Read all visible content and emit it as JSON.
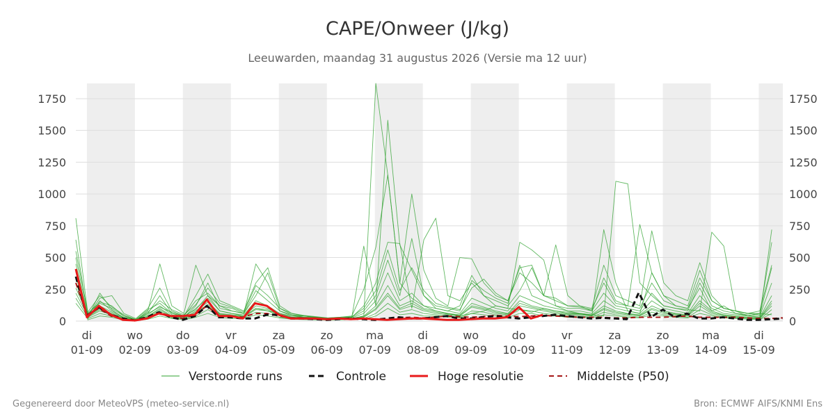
{
  "chart_data": {
    "type": "line",
    "title": "CAPE/Onweer (J/kg)",
    "subtitle": "Leeuwarden, maandag 31 augustus 2026 (Versie ma 12 uur)",
    "credit_left": "Gegenereerd door MeteoVPS (meteo-service.nl)",
    "credit_right": "Bron: ECMWF AIFS/KNMI Ens",
    "x_unit": "days since 2026-09-01 00:00",
    "xlim": [
      -0.23,
      14.5
    ],
    "ylim": [
      0,
      1870
    ],
    "y_ticks": [
      0,
      250,
      500,
      750,
      1000,
      1250,
      1500,
      1750
    ],
    "y_tick_labels": [
      "0",
      "250",
      "500",
      "750",
      "1000",
      "1250",
      "1500",
      "1750"
    ],
    "x_ticks": [
      {
        "x": 0,
        "day": "di",
        "date": "01-09"
      },
      {
        "x": 1,
        "day": "wo",
        "date": "02-09"
      },
      {
        "x": 2,
        "day": "do",
        "date": "03-09"
      },
      {
        "x": 3,
        "day": "vr",
        "date": "04-09"
      },
      {
        "x": 4,
        "day": "za",
        "date": "05-09"
      },
      {
        "x": 5,
        "day": "zo",
        "date": "06-09"
      },
      {
        "x": 6,
        "day": "ma",
        "date": "07-09"
      },
      {
        "x": 7,
        "day": "di",
        "date": "08-09"
      },
      {
        "x": 8,
        "day": "wo",
        "date": "09-09"
      },
      {
        "x": 9,
        "day": "do",
        "date": "10-09"
      },
      {
        "x": 10,
        "day": "vr",
        "date": "11-09"
      },
      {
        "x": 11,
        "day": "za",
        "date": "12-09"
      },
      {
        "x": 12,
        "day": "zo",
        "date": "13-09"
      },
      {
        "x": 13,
        "day": "ma",
        "date": "14-09"
      },
      {
        "x": 14,
        "day": "di",
        "date": "15-09"
      }
    ],
    "shaded_bands": [
      [
        0,
        1
      ],
      [
        2,
        3
      ],
      [
        4,
        5
      ],
      [
        6,
        7
      ],
      [
        8,
        9
      ],
      [
        10,
        11
      ],
      [
        12,
        13
      ],
      [
        14,
        14.5
      ]
    ],
    "colors": {
      "ensemble": "#2ca02c",
      "control": "#111111",
      "high_res": "#e8191a",
      "median": "#a51515",
      "band": "#eeeeee",
      "grid": "#dddddd"
    },
    "legend": [
      {
        "key": "ensemble",
        "label": "Verstoorde runs"
      },
      {
        "key": "control",
        "label": "Controle"
      },
      {
        "key": "high_res",
        "label": "Hoge resolutie"
      },
      {
        "key": "median",
        "label": "Middelste (P50)"
      }
    ],
    "series": [
      {
        "name": "Controle",
        "key": "control",
        "x": [
          -0.23,
          0,
          0.25,
          0.5,
          0.75,
          1,
          1.25,
          1.5,
          1.75,
          2,
          2.25,
          2.5,
          2.75,
          3,
          3.25,
          3.5,
          3.75,
          4,
          4.25,
          4.5,
          4.75,
          5,
          5.25,
          5.5,
          5.75,
          6,
          6.25,
          6.5,
          6.75,
          7,
          7.25,
          7.5,
          7.75,
          8,
          8.25,
          8.5,
          8.75,
          9,
          9.25,
          9.5,
          9.75,
          10,
          10.25,
          10.5,
          10.75,
          11,
          11.25,
          11.5,
          11.75,
          12,
          12.25,
          12.5,
          12.75,
          13,
          13.25,
          13.5,
          13.75,
          14,
          14.25,
          14.5
        ],
        "y": [
          350,
          40,
          110,
          50,
          20,
          5,
          30,
          70,
          30,
          10,
          40,
          120,
          30,
          30,
          20,
          20,
          50,
          50,
          20,
          20,
          15,
          10,
          15,
          20,
          15,
          10,
          20,
          30,
          20,
          20,
          30,
          40,
          20,
          20,
          30,
          40,
          30,
          20,
          30,
          40,
          50,
          40,
          30,
          20,
          25,
          20,
          15,
          225,
          30,
          90,
          30,
          60,
          20,
          20,
          30,
          20,
          10,
          10,
          15,
          20
        ]
      },
      {
        "name": "Hoge resolutie",
        "key": "high_res",
        "x": [
          -0.23,
          0,
          0.25,
          0.5,
          0.75,
          1,
          1.25,
          1.5,
          1.75,
          2,
          2.25,
          2.5,
          2.75,
          3,
          3.25,
          3.5,
          3.75,
          4,
          4.25,
          4.5,
          4.75,
          5,
          5.25,
          5.5,
          5.75,
          6,
          6.25,
          6.5,
          6.75,
          7,
          7.25,
          7.5,
          7.75,
          8,
          8.25,
          8.5,
          8.75,
          9,
          9.25,
          9.5
        ],
        "y": [
          410,
          30,
          120,
          50,
          10,
          5,
          20,
          60,
          40,
          40,
          50,
          170,
          40,
          40,
          20,
          140,
          120,
          50,
          20,
          20,
          20,
          15,
          20,
          15,
          20,
          15,
          10,
          15,
          20,
          20,
          15,
          10,
          10,
          15,
          20,
          20,
          30,
          110,
          20,
          50
        ]
      },
      {
        "name": "Middelste (P50)",
        "key": "median",
        "x": [
          -0.23,
          0,
          0.25,
          0.5,
          0.75,
          1,
          1.25,
          1.5,
          1.75,
          2,
          2.25,
          2.5,
          2.75,
          3,
          3.25,
          3.5,
          3.75,
          4,
          4.25,
          4.5,
          4.75,
          5,
          5.25,
          5.5,
          5.75,
          6,
          6.25,
          6.5,
          6.75,
          7,
          7.25,
          7.5,
          7.75,
          8,
          8.25,
          8.5,
          8.75,
          9,
          9.25,
          9.5,
          9.75,
          10,
          10.25,
          10.5,
          10.75,
          11,
          11.25,
          11.5,
          11.75,
          12,
          12.25,
          12.5,
          12.75,
          13,
          13.25,
          13.5,
          13.75,
          14,
          14.25,
          14.5
        ],
        "y": [
          300,
          50,
          100,
          40,
          15,
          5,
          30,
          70,
          40,
          20,
          50,
          120,
          40,
          40,
          30,
          60,
          60,
          40,
          25,
          25,
          20,
          15,
          20,
          20,
          20,
          15,
          20,
          25,
          30,
          25,
          30,
          40,
          35,
          30,
          35,
          45,
          40,
          35,
          40,
          45,
          40,
          35,
          30,
          30,
          30,
          25,
          25,
          30,
          30,
          30,
          35,
          40,
          30,
          30,
          30,
          30,
          25,
          20,
          20,
          25
        ]
      }
    ],
    "ensemble": {
      "name": "Verstoorde runs",
      "x_start": -0.23,
      "x_step": 0.25,
      "members": [
        [
          810,
          60,
          150,
          120,
          40,
          10,
          60,
          110,
          70,
          40,
          90,
          200,
          80,
          60,
          40,
          100,
          80,
          60,
          30,
          30,
          20,
          20,
          25,
          20,
          40,
          1870,
          1150,
          300,
          180,
          120,
          80,
          60,
          40,
          60,
          80,
          120,
          100,
          90,
          70,
          100,
          80,
          70,
          60,
          50,
          40,
          1100,
          1080,
          300,
          200,
          120,
          100,
          90,
          80,
          700,
          590,
          80,
          40,
          60,
          50
        ],
        [
          640,
          30,
          220,
          90,
          20,
          5,
          80,
          450,
          120,
          60,
          440,
          200,
          120,
          80,
          60,
          450,
          300,
          80,
          40,
          40,
          30,
          20,
          25,
          30,
          590,
          120,
          1580,
          600,
          400,
          200,
          100,
          80,
          120,
          360,
          200,
          120,
          100,
          620,
          560,
          480,
          120,
          80,
          60,
          40,
          720,
          300,
          80,
          60,
          380,
          200,
          120,
          100,
          260,
          80,
          120,
          60,
          40,
          30,
          720
        ],
        [
          500,
          40,
          180,
          200,
          60,
          20,
          100,
          260,
          80,
          40,
          200,
          370,
          160,
          120,
          80,
          300,
          420,
          120,
          60,
          40,
          30,
          25,
          30,
          40,
          250,
          580,
          1150,
          300,
          1000,
          400,
          180,
          120,
          500,
          490,
          300,
          200,
          160,
          420,
          440,
          200,
          180,
          120,
          120,
          100,
          440,
          200,
          160,
          120,
          710,
          300,
          200,
          160,
          460,
          200,
          100,
          80,
          60,
          60,
          620
        ],
        [
          450,
          20,
          160,
          80,
          30,
          10,
          60,
          200,
          60,
          30,
          120,
          300,
          100,
          80,
          60,
          200,
          380,
          100,
          50,
          30,
          30,
          20,
          20,
          30,
          120,
          300,
          620,
          610,
          100,
          640,
          810,
          200,
          160,
          300,
          200,
          160,
          120,
          240,
          420,
          200,
          600,
          200,
          120,
          80,
          340,
          160,
          120,
          760,
          380,
          200,
          160,
          120,
          400,
          160,
          100,
          80,
          60,
          80,
          440
        ],
        [
          300,
          60,
          140,
          100,
          40,
          15,
          90,
          140,
          60,
          40,
          160,
          220,
          120,
          100,
          60,
          240,
          160,
          80,
          50,
          40,
          30,
          20,
          25,
          30,
          80,
          200,
          480,
          200,
          650,
          200,
          120,
          100,
          80,
          320,
          240,
          180,
          140,
          440,
          200,
          160,
          120,
          100,
          100,
          80,
          220,
          120,
          100,
          80,
          220,
          120,
          100,
          80,
          300,
          120,
          80,
          60,
          50,
          40,
          300
        ],
        [
          260,
          50,
          120,
          70,
          25,
          10,
          50,
          120,
          50,
          30,
          100,
          180,
          80,
          60,
          50,
          160,
          120,
          60,
          40,
          30,
          25,
          20,
          20,
          25,
          60,
          160,
          380,
          160,
          220,
          120,
          100,
          80,
          60,
          180,
          140,
          100,
          80,
          200,
          160,
          120,
          100,
          80,
          80,
          60,
          160,
          100,
          80,
          60,
          160,
          100,
          80,
          60,
          200,
          100,
          60,
          50,
          40,
          30,
          200
        ],
        [
          220,
          40,
          100,
          60,
          20,
          8,
          40,
          100,
          40,
          25,
          80,
          150,
          60,
          50,
          40,
          120,
          100,
          50,
          30,
          25,
          20,
          15,
          18,
          20,
          40,
          120,
          280,
          120,
          160,
          100,
          80,
          60,
          50,
          140,
          110,
          80,
          60,
          160,
          120,
          100,
          80,
          60,
          60,
          50,
          120,
          80,
          60,
          50,
          120,
          80,
          60,
          50,
          160,
          80,
          50,
          40,
          30,
          25,
          160
        ],
        [
          180,
          30,
          80,
          50,
          15,
          5,
          30,
          80,
          30,
          20,
          60,
          120,
          50,
          40,
          30,
          90,
          80,
          40,
          25,
          20,
          15,
          12,
          15,
          18,
          30,
          90,
          200,
          90,
          120,
          80,
          60,
          50,
          40,
          110,
          90,
          60,
          50,
          120,
          100,
          80,
          60,
          50,
          50,
          40,
          90,
          60,
          50,
          40,
          90,
          60,
          50,
          40,
          120,
          60,
          40,
          30,
          25,
          20,
          120
        ],
        [
          140,
          20,
          60,
          40,
          10,
          4,
          20,
          60,
          25,
          15,
          40,
          90,
          40,
          30,
          25,
          70,
          60,
          30,
          20,
          15,
          12,
          10,
          12,
          15,
          20,
          60,
          140,
          70,
          90,
          60,
          50,
          40,
          30,
          80,
          70,
          50,
          40,
          90,
          80,
          60,
          50,
          40,
          40,
          30,
          70,
          50,
          40,
          30,
          70,
          50,
          40,
          30,
          90,
          50,
          30,
          25,
          20,
          15,
          90
        ],
        [
          400,
          10,
          40,
          30,
          8,
          3,
          15,
          40,
          20,
          10,
          30,
          60,
          30,
          20,
          20,
          50,
          40,
          25,
          15,
          12,
          10,
          8,
          10,
          12,
          15,
          40,
          100,
          50,
          60,
          40,
          40,
          30,
          25,
          60,
          50,
          40,
          30,
          60,
          60,
          40,
          40,
          30,
          30,
          25,
          50,
          40,
          30,
          25,
          50,
          40,
          30,
          25,
          60,
          40,
          25,
          20,
          15,
          12,
          60
        ],
        [
          550,
          70,
          200,
          110,
          50,
          12,
          70,
          160,
          90,
          50,
          130,
          260,
          140,
          110,
          70,
          280,
          200,
          100,
          60,
          45,
          35,
          25,
          30,
          35,
          100,
          240,
          560,
          240,
          420,
          240,
          140,
          110,
          90,
          260,
          330,
          220,
          160,
          380,
          300,
          200,
          160,
          120,
          110,
          90,
          300,
          140,
          120,
          100,
          300,
          160,
          120,
          100,
          340,
          160,
          100,
          80,
          60,
          50,
          420
        ],
        [
          350,
          35,
          90,
          55,
          18,
          6,
          35,
          90,
          35,
          22,
          70,
          130,
          55,
          45,
          35,
          100,
          90,
          45,
          28,
          22,
          18,
          14,
          16,
          20,
          35,
          100,
          220,
          100,
          140,
          90,
          70,
          55,
          45,
          120,
          100,
          70,
          55,
          140,
          110,
          90,
          70,
          55,
          55,
          45,
          100,
          70,
          55,
          45,
          100,
          70,
          55,
          45,
          140,
          70,
          45,
          35,
          28,
          22,
          140
        ]
      ]
    }
  }
}
